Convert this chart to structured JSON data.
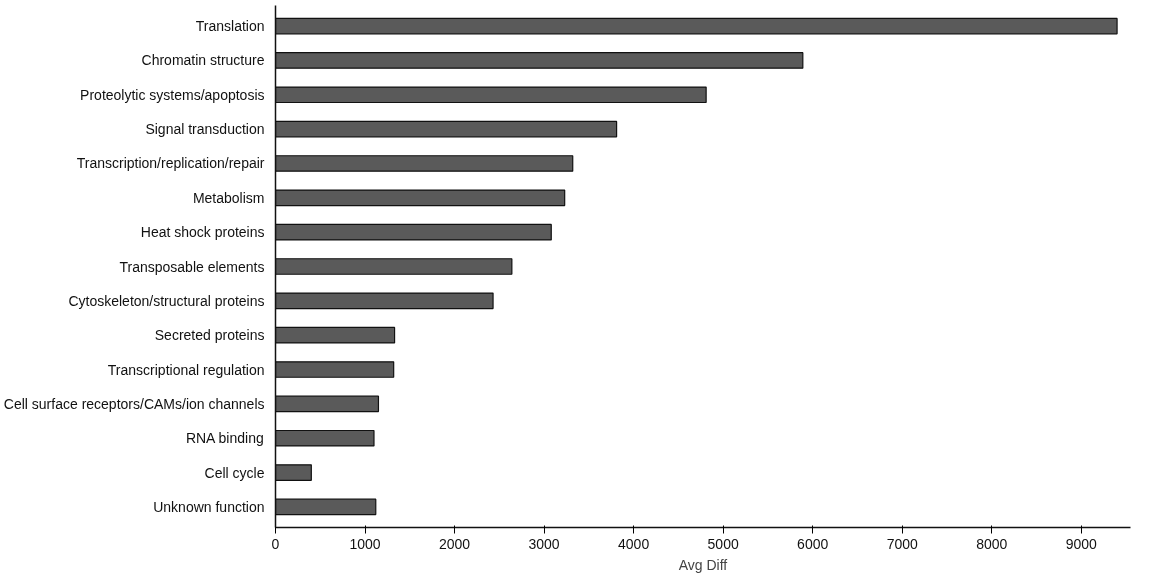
{
  "chart_data": {
    "type": "bar",
    "orientation": "horizontal",
    "xlabel": "Avg Diff",
    "categories": [
      "Translation",
      "Chromatin structure",
      "Proteolytic systems/apoptosis",
      "Signal transduction",
      "Transcription/replication/repair",
      "Metabolism",
      "Heat shock proteins",
      "Transposable elements",
      "Cytoskeleton/structural proteins",
      "Secreted proteins",
      "Transcriptional regulation",
      "Cell surface receptors/CAMs/ion channels",
      "RNA binding",
      "Cell cycle",
      "Unknown function"
    ],
    "values": [
      9400,
      5890,
      4810,
      3810,
      3320,
      3230,
      3080,
      2640,
      2430,
      1330,
      1320,
      1150,
      1100,
      400,
      1120
    ],
    "color": "#5a5a5a",
    "xlim": [
      0,
      9550
    ],
    "xticks": [
      0,
      1000,
      2000,
      3000,
      4000,
      5000,
      6000,
      7000,
      8000,
      9000
    ],
    "grid": false
  }
}
